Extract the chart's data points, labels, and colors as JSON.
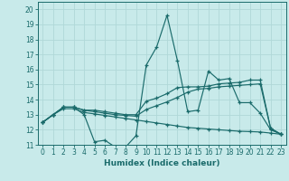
{
  "xlabel": "Humidex (Indice chaleur)",
  "ylabel": "",
  "background_color": "#c8eaea",
  "grid_color": "#b0d8d8",
  "line_color": "#1a6b6b",
  "xlim": [
    -0.5,
    23.5
  ],
  "ylim": [
    11,
    20.5
  ],
  "yticks": [
    11,
    12,
    13,
    14,
    15,
    16,
    17,
    18,
    19,
    20
  ],
  "xticks": [
    0,
    1,
    2,
    3,
    4,
    5,
    6,
    7,
    8,
    9,
    10,
    11,
    12,
    13,
    14,
    15,
    16,
    17,
    18,
    19,
    20,
    21,
    22,
    23
  ],
  "series": [
    [
      12.5,
      13.0,
      13.5,
      13.5,
      13.0,
      11.2,
      11.3,
      10.85,
      10.85,
      11.6,
      16.3,
      17.5,
      19.6,
      16.6,
      13.2,
      13.3,
      15.9,
      15.3,
      15.4,
      13.8,
      13.8,
      13.1,
      12.0,
      11.7
    ],
    [
      12.5,
      13.0,
      13.5,
      13.5,
      13.3,
      13.3,
      13.2,
      13.1,
      13.0,
      13.0,
      13.9,
      14.1,
      14.4,
      14.8,
      14.85,
      14.85,
      14.9,
      15.05,
      15.1,
      15.15,
      15.3,
      15.3,
      12.1,
      11.7
    ],
    [
      12.5,
      13.0,
      13.5,
      13.5,
      13.3,
      13.2,
      13.1,
      13.0,
      12.95,
      12.9,
      13.35,
      13.6,
      13.85,
      14.15,
      14.5,
      14.7,
      14.75,
      14.85,
      14.9,
      14.95,
      15.0,
      15.05,
      12.1,
      11.7
    ],
    [
      12.5,
      13.0,
      13.4,
      13.4,
      13.15,
      13.05,
      12.95,
      12.85,
      12.75,
      12.65,
      12.55,
      12.45,
      12.35,
      12.25,
      12.15,
      12.1,
      12.05,
      12.0,
      11.95,
      11.9,
      11.88,
      11.85,
      11.78,
      11.7
    ]
  ]
}
